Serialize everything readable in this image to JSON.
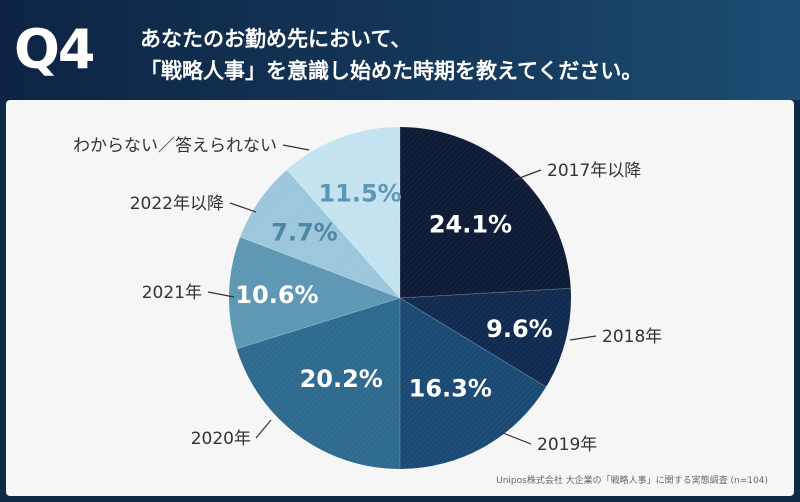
{
  "header": {
    "badge": "Q4",
    "title_line1": "あなたのお勤め先において、",
    "title_line2": "「戦略人事」を意識し始めた時期を教えてください。"
  },
  "colors": {
    "header_bg": "#0f2a47",
    "panel_bg": "#f6f6f6",
    "label_text": "#333333"
  },
  "chart_data": {
    "type": "pie",
    "title": "「戦略人事」を意識し始めた時期",
    "slices": [
      {
        "label": "2017年以降",
        "value": 24.1,
        "display": "24.1%",
        "color": "#0d1b36",
        "text_color": "#ffffff"
      },
      {
        "label": "2018年",
        "value": 9.6,
        "display": "9.6%",
        "color": "#112a4f",
        "text_color": "#ffffff"
      },
      {
        "label": "2019年",
        "value": 16.3,
        "display": "16.3%",
        "color": "#1a4a74",
        "text_color": "#ffffff"
      },
      {
        "label": "2020年",
        "value": 20.2,
        "display": "20.2%",
        "color": "#2e6a8e",
        "text_color": "#ffffff"
      },
      {
        "label": "2021年",
        "value": 10.6,
        "display": "10.6%",
        "color": "#5d97b3",
        "text_color": "#ffffff"
      },
      {
        "label": "2022年以降",
        "value": 7.7,
        "display": "7.7%",
        "color": "#9cc6db",
        "text_color": "#4e86a4"
      },
      {
        "label": "わからない／答えられない",
        "value": 11.5,
        "display": "11.5%",
        "color": "#c4e3f0",
        "text_color": "#5d97b3"
      }
    ]
  },
  "source": "Unipos株式会社 大企業の「戦略人事」に関する実態調査 (n=104)"
}
